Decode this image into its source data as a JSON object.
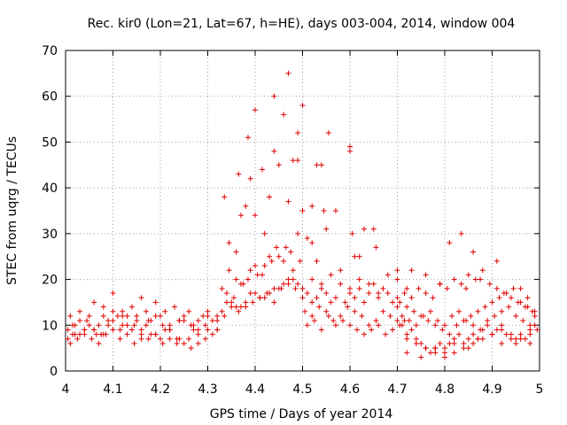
{
  "chart_data": {
    "type": "scatter",
    "title": "Rec. kir0 (Lon=21, Lat=67, h=HE), days 003-004, 2014, window 004",
    "xlabel": "GPS time / Days of year 2014",
    "ylabel": "STEC from uqrg / TECUs",
    "xlim": [
      4,
      5
    ],
    "ylim": [
      0,
      70
    ],
    "xticks": [
      4,
      4.1,
      4.2,
      4.3,
      4.4,
      4.5,
      4.6,
      4.7,
      4.8,
      4.9,
      5
    ],
    "xtick_labels": [
      "4",
      "4.1",
      "4.2",
      "4.3",
      "4.4",
      "4.5",
      "4.6",
      "4.7",
      "4.8",
      "4.9",
      "5"
    ],
    "yticks": [
      0,
      10,
      20,
      30,
      40,
      50,
      60,
      70
    ],
    "ytick_labels": [
      "0",
      "10",
      "20",
      "30",
      "40",
      "50",
      "60",
      "70"
    ],
    "grid": true,
    "marker": "+",
    "color": "#e00000",
    "series": [
      {
        "name": "STEC",
        "x": [
          4.005,
          4.01,
          4.015,
          4.02,
          4.03,
          4.04,
          4.05,
          4.06,
          4.07,
          4.08,
          4.09,
          4.1,
          4.11,
          4.12,
          4.13,
          4.14,
          4.15,
          4.16,
          4.17,
          4.18,
          4.19,
          4.2,
          4.21,
          4.22,
          4.23,
          4.24,
          4.25,
          4.26,
          4.27,
          4.28,
          4.29,
          4.3,
          4.005,
          4.015,
          4.03,
          4.045,
          4.06,
          4.075,
          4.09,
          4.1,
          4.115,
          4.13,
          4.145,
          4.16,
          4.175,
          4.19,
          4.205,
          4.22,
          4.235,
          4.25,
          4.265,
          4.28,
          4.295,
          4.31,
          4.01,
          4.025,
          4.04,
          4.055,
          4.07,
          4.085,
          4.1,
          4.115,
          4.13,
          4.145,
          4.16,
          4.175,
          4.19,
          4.205,
          4.22,
          4.235,
          4.25,
          4.265,
          4.28,
          4.295,
          4.31,
          4.32,
          4.02,
          4.04,
          4.06,
          4.08,
          4.1,
          4.12,
          4.14,
          4.16,
          4.18,
          4.2,
          4.22,
          4.24,
          4.26,
          4.28,
          4.3,
          4.32,
          4.03,
          4.05,
          4.065,
          4.08,
          4.1,
          4.12,
          4.15,
          4.17,
          4.19,
          4.21,
          4.24,
          4.27,
          4.3,
          4.32,
          4.33,
          4.34,
          4.35,
          4.36,
          4.37,
          4.38,
          4.39,
          4.4,
          4.41,
          4.42,
          4.43,
          4.44,
          4.45,
          4.46,
          4.47,
          4.48,
          4.49,
          4.5,
          4.32,
          4.335,
          4.35,
          4.365,
          4.38,
          4.395,
          4.41,
          4.425,
          4.44,
          4.455,
          4.47,
          4.485,
          4.5,
          4.33,
          4.345,
          4.36,
          4.375,
          4.39,
          4.405,
          4.42,
          4.435,
          4.45,
          4.465,
          4.48,
          4.495,
          4.34,
          4.355,
          4.37,
          4.385,
          4.4,
          4.415,
          4.43,
          4.445,
          4.46,
          4.475,
          4.49,
          4.345,
          4.36,
          4.37,
          4.38,
          4.39,
          4.4,
          4.42,
          4.43,
          4.44,
          4.45,
          4.47,
          4.48,
          4.49,
          4.5,
          4.51,
          4.52,
          4.53,
          4.54,
          4.545,
          4.555,
          4.6,
          4.605,
          4.62,
          4.65,
          4.655,
          4.7,
          4.335,
          4.365,
          4.385,
          4.4,
          4.415,
          4.44,
          4.46,
          4.47,
          4.49,
          4.5,
          4.52,
          4.53,
          4.55,
          4.57,
          4.6,
          4.61,
          4.63,
          4.51,
          4.52,
          4.53,
          4.54,
          4.55,
          4.56,
          4.57,
          4.58,
          4.59,
          4.6,
          4.61,
          4.62,
          4.63,
          4.64,
          4.65,
          4.66,
          4.67,
          4.68,
          4.69,
          4.7,
          4.505,
          4.52,
          4.535,
          4.55,
          4.565,
          4.58,
          4.595,
          4.61,
          4.625,
          4.64,
          4.655,
          4.67,
          4.685,
          4.7,
          4.715,
          4.51,
          4.525,
          4.54,
          4.555,
          4.57,
          4.585,
          4.6,
          4.615,
          4.63,
          4.645,
          4.66,
          4.675,
          4.69,
          4.705,
          4.52,
          4.54,
          4.56,
          4.58,
          4.6,
          4.62,
          4.64,
          4.66,
          4.68,
          4.7,
          4.72,
          4.7,
          4.71,
          4.72,
          4.73,
          4.74,
          4.75,
          4.76,
          4.77,
          4.78,
          4.79,
          4.8,
          4.81,
          4.82,
          4.83,
          4.84,
          4.85,
          4.86,
          4.87,
          4.88,
          4.89,
          4.9,
          4.91,
          4.92,
          4.93,
          4.94,
          4.95,
          4.96,
          4.97,
          4.98,
          4.99,
          4.705,
          4.72,
          4.735,
          4.75,
          4.765,
          4.78,
          4.795,
          4.81,
          4.825,
          4.84,
          4.855,
          4.87,
          4.885,
          4.9,
          4.915,
          4.93,
          4.945,
          4.96,
          4.975,
          4.99,
          4.71,
          4.725,
          4.74,
          4.755,
          4.77,
          4.785,
          4.8,
          4.815,
          4.83,
          4.845,
          4.86,
          4.875,
          4.89,
          4.905,
          4.92,
          4.935,
          4.95,
          4.965,
          4.98,
          4.995,
          4.715,
          4.73,
          4.745,
          4.76,
          4.775,
          4.79,
          4.805,
          4.82,
          4.835,
          4.85,
          4.865,
          4.88,
          4.895,
          4.91,
          4.925,
          4.94,
          4.955,
          4.97,
          4.985,
          4.72,
          4.74,
          4.76,
          4.78,
          4.8,
          4.82,
          4.84,
          4.86,
          4.88,
          4.9,
          4.92,
          4.94,
          4.96,
          4.98,
          4.72,
          4.75,
          4.78,
          4.8,
          4.82,
          4.85,
          4.87,
          4.9,
          4.92,
          4.95,
          4.98,
          4.73,
          4.76,
          4.79,
          4.81,
          4.835,
          4.845,
          4.86,
          4.875,
          4.91,
          4.96,
          4.975,
          4.99
        ],
        "y": [
          9,
          12,
          8,
          10,
          13,
          9,
          12,
          15,
          10,
          14,
          11,
          17,
          12,
          13,
          10,
          14,
          12,
          16,
          13,
          11,
          15,
          12,
          13,
          10,
          14,
          11,
          12,
          13,
          9,
          11,
          12,
          12,
          7,
          10,
          8,
          11,
          9,
          8,
          10,
          11,
          9,
          12,
          10,
          9,
          11,
          8,
          10,
          9,
          7,
          11,
          10,
          9,
          10,
          11,
          6,
          7,
          8,
          7,
          6,
          8,
          9,
          7,
          8,
          6,
          7,
          7,
          8,
          6,
          7,
          6,
          6,
          5,
          6,
          7,
          8,
          9,
          8,
          9,
          9,
          8,
          9,
          10,
          9,
          8,
          8,
          7,
          9,
          7,
          7,
          8,
          9,
          9,
          11,
          10,
          8,
          12,
          13,
          12,
          11,
          10,
          12,
          9,
          11,
          10,
          13,
          12,
          13,
          15,
          15,
          14,
          14,
          15,
          17,
          17,
          16,
          16,
          17,
          18,
          18,
          19,
          19,
          20,
          19,
          18,
          11,
          12,
          14,
          13,
          14,
          15,
          16,
          17,
          15,
          18,
          20,
          18,
          16,
          18,
          22,
          20,
          19,
          22,
          21,
          23,
          24,
          25,
          27,
          22,
          24,
          17,
          16,
          19,
          20,
          23,
          21,
          25,
          27,
          24,
          26,
          30,
          28,
          26,
          34,
          36,
          42,
          34,
          30,
          38,
          48,
          45,
          37,
          46,
          52,
          35,
          29,
          36,
          45,
          45,
          35,
          52,
          48,
          30,
          25,
          31,
          27,
          20,
          38,
          43,
          51,
          57,
          44,
          60,
          56,
          65,
          46,
          58,
          28,
          24,
          31,
          35,
          49,
          25,
          31,
          17,
          15,
          16,
          18,
          17,
          15,
          16,
          19,
          15,
          17,
          16,
          18,
          15,
          17,
          19,
          16,
          18,
          17,
          15,
          16,
          13,
          12,
          14,
          13,
          11,
          12,
          14,
          13,
          12,
          10,
          11,
          13,
          12,
          14,
          11,
          10,
          11,
          9,
          12,
          10,
          11,
          10,
          9,
          8,
          9,
          10,
          8,
          9,
          10,
          20,
          19,
          21,
          22,
          18,
          20,
          19,
          17,
          21,
          22,
          18,
          11,
          10,
          8,
          9,
          7,
          6,
          5,
          4,
          5,
          6,
          5,
          6,
          7,
          8,
          6,
          7,
          8,
          7,
          9,
          10,
          8,
          9,
          10,
          8,
          7,
          6,
          8,
          7,
          9,
          10,
          15,
          14,
          13,
          12,
          11,
          10,
          9,
          8,
          10,
          11,
          12,
          13,
          14,
          15,
          16,
          17,
          18,
          15,
          14,
          13,
          12,
          11,
          10,
          12,
          13,
          11,
          10,
          12,
          13,
          11,
          10,
          9,
          11,
          12,
          13,
          14,
          12,
          11,
          10,
          9,
          17,
          16,
          18,
          17,
          16,
          19,
          18,
          20,
          19,
          21,
          20,
          22,
          19,
          18,
          17,
          16,
          15,
          14,
          13,
          7,
          6,
          5,
          4,
          3,
          4,
          5,
          6,
          7,
          8,
          9,
          8,
          7,
          6,
          4,
          3,
          5,
          4,
          6,
          5,
          7,
          8,
          6,
          7,
          8,
          22,
          21,
          19,
          28,
          30,
          18,
          26,
          20,
          24,
          18,
          16,
          12
        ]
      }
    ]
  }
}
